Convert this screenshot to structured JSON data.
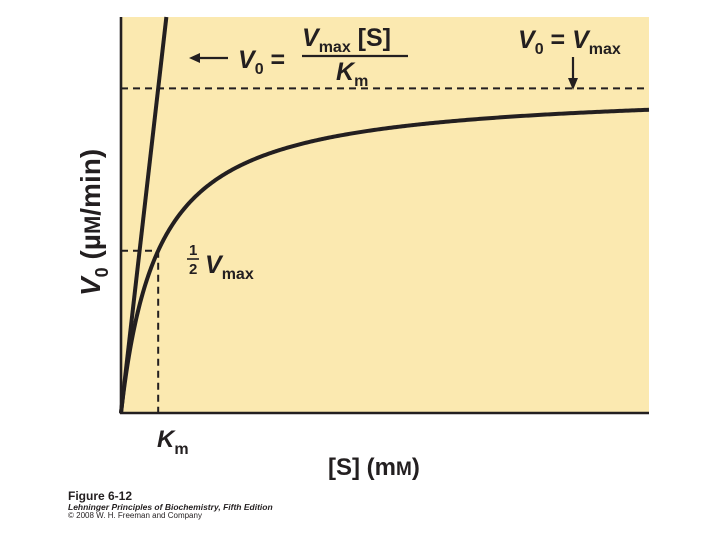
{
  "chart_data": {
    "type": "line",
    "title": "",
    "ylabel": "V0 (µM/min)",
    "xlabel": "[S] (mM)",
    "km": 1,
    "vmax": 1,
    "xlim": [
      0,
      14.2
    ],
    "ylim": [
      0,
      1.22
    ],
    "grid": false,
    "series": [
      {
        "kind": "michaelis-menten",
        "equation": "V0 = Vmax[S]/(Km+[S])"
      },
      {
        "kind": "initial-slope",
        "equation": "V0 = Vmax[S]/Km"
      }
    ],
    "reference_lines": [
      {
        "label": "V0 = Vmax",
        "y": 1
      },
      {
        "label": "1/2 Vmax",
        "y": 0.5,
        "x": 1
      }
    ],
    "tick_labels": {
      "x": [
        "Km"
      ]
    },
    "annotations": {
      "slope_eq": {
        "lhs": "V0 =",
        "numerator": "Vmax [S]",
        "denominator": "Km"
      },
      "vmax_eq": "V0 = Vmax",
      "half_vmax": "1/2 Vmax"
    },
    "colors": {
      "background": "#fbe9b0",
      "line": "#231f20"
    }
  },
  "caption": {
    "figure": "Figure 6-12",
    "book": "Lehninger Principles of Biochemistry, Fifth Edition",
    "copyright": "© 2008 W. H. Freeman and Company"
  }
}
